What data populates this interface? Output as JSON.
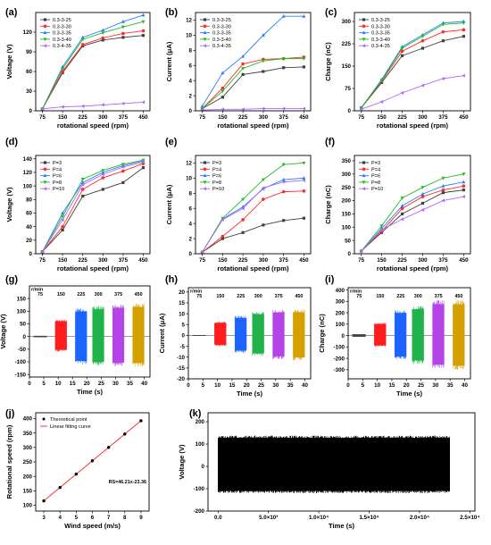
{
  "chart_data": [
    {
      "id": "a",
      "type": "line",
      "panel_label": "(a)",
      "xlabel": "rotational speed (rpm)",
      "ylabel": "Voltage (V)",
      "x": [
        75,
        150,
        225,
        300,
        375,
        450
      ],
      "xlim": [
        50,
        475
      ],
      "ylim": [
        0,
        150
      ],
      "yticks": [
        0,
        30,
        60,
        90,
        120
      ],
      "legend_position": "top-left",
      "series": [
        {
          "name": "0.3-3-25",
          "color": "#404040",
          "values": [
            3,
            58,
            99,
            108,
            112,
            115
          ]
        },
        {
          "name": "0.3-3-30",
          "color": "#ff2a2a",
          "values": [
            3,
            60,
            101,
            111,
            118,
            122
          ]
        },
        {
          "name": "0.3-3-35",
          "color": "#2a7fff",
          "values": [
            3,
            67,
            112,
            123,
            136,
            146
          ]
        },
        {
          "name": "0.3-3-40",
          "color": "#22bb22",
          "values": [
            3,
            64,
            109,
            119,
            128,
            136
          ]
        },
        {
          "name": "0.3-4-35",
          "color": "#b066ff",
          "values": [
            3,
            6,
            7,
            9,
            11,
            13
          ]
        }
      ]
    },
    {
      "id": "b",
      "type": "line",
      "panel_label": "(b)",
      "xlabel": "rotational speed (rpm)",
      "ylabel": "Current (μA)",
      "x": [
        75,
        150,
        225,
        300,
        375,
        450
      ],
      "xlim": [
        50,
        475
      ],
      "ylim": [
        0,
        13
      ],
      "yticks": [
        0,
        2,
        4,
        6,
        8,
        10,
        12
      ],
      "legend_position": "top-left",
      "series": [
        {
          "name": "0.3-3-25",
          "color": "#404040",
          "values": [
            0.3,
            1.8,
            4.8,
            5.2,
            5.7,
            5.8
          ]
        },
        {
          "name": "0.3-3-30",
          "color": "#ff2a2a",
          "values": [
            0.3,
            3.0,
            6.2,
            6.8,
            6.9,
            7.1
          ]
        },
        {
          "name": "0.3-3-35",
          "color": "#2a7fff",
          "values": [
            0.6,
            5.0,
            7.2,
            10.0,
            12.5,
            12.5
          ]
        },
        {
          "name": "0.3-3-40",
          "color": "#22bb22",
          "values": [
            0.3,
            2.6,
            5.6,
            6.6,
            6.9,
            6.9
          ]
        },
        {
          "name": "0.3-4-35",
          "color": "#b066ff",
          "values": [
            0.1,
            0.2,
            0.2,
            0.3,
            0.3,
            0.3
          ]
        }
      ]
    },
    {
      "id": "c",
      "type": "line",
      "panel_label": "(c)",
      "xlabel": "rotational speed (rpm)",
      "ylabel": "Charge (nC)",
      "x": [
        75,
        150,
        225,
        300,
        375,
        450
      ],
      "xlim": [
        50,
        475
      ],
      "ylim": [
        0,
        330
      ],
      "yticks": [
        0,
        75,
        150,
        225,
        300
      ],
      "legend_position": "top-left",
      "series": [
        {
          "name": "0.3-3-25",
          "color": "#404040",
          "values": [
            10,
            95,
            185,
            210,
            235,
            250
          ]
        },
        {
          "name": "0.3-3-30",
          "color": "#ff2a2a",
          "values": [
            10,
            100,
            200,
            235,
            265,
            272
          ]
        },
        {
          "name": "0.3-3-35",
          "color": "#2a7fff",
          "values": [
            10,
            105,
            215,
            255,
            295,
            300
          ]
        },
        {
          "name": "0.3-3-40",
          "color": "#22bb22",
          "values": [
            10,
            102,
            210,
            250,
            290,
            295
          ]
        },
        {
          "name": "0.3-4-35",
          "color": "#b066ff",
          "values": [
            5,
            30,
            60,
            85,
            108,
            118
          ]
        }
      ]
    },
    {
      "id": "d",
      "type": "line",
      "panel_label": "(d)",
      "xlabel": "rotational speed (rpm)",
      "ylabel": "Voltage (V)",
      "x": [
        75,
        150,
        225,
        300,
        375,
        450
      ],
      "xlim": [
        50,
        475
      ],
      "ylim": [
        0,
        145
      ],
      "yticks": [
        0,
        20,
        40,
        60,
        80,
        100,
        120,
        140
      ],
      "legend_position": "top-left",
      "series": [
        {
          "name": "P=3",
          "color": "#404040",
          "values": [
            3,
            35,
            85,
            95,
            105,
            127
          ]
        },
        {
          "name": "P=4",
          "color": "#ff2a2a",
          "values": [
            3,
            40,
            95,
            112,
            122,
            133
          ]
        },
        {
          "name": "P=6",
          "color": "#2a7fff",
          "values": [
            3,
            60,
            105,
            120,
            130,
            137
          ]
        },
        {
          "name": "P=8",
          "color": "#22bb22",
          "values": [
            3,
            55,
            110,
            123,
            132,
            138
          ]
        },
        {
          "name": "P=10",
          "color": "#b066ff",
          "values": [
            3,
            50,
            102,
            117,
            128,
            135
          ]
        }
      ]
    },
    {
      "id": "e",
      "type": "line",
      "panel_label": "(e)",
      "xlabel": "rotational speed (rpm)",
      "ylabel": "Current (μA)",
      "x": [
        75,
        150,
        225,
        300,
        375,
        450
      ],
      "xlim": [
        50,
        475
      ],
      "ylim": [
        0,
        13
      ],
      "yticks": [
        0,
        2,
        4,
        6,
        8,
        10,
        12
      ],
      "legend_position": "top-left",
      "series": [
        {
          "name": "P=3",
          "color": "#404040",
          "values": [
            0.2,
            2.0,
            2.8,
            3.8,
            4.4,
            4.7
          ]
        },
        {
          "name": "P=4",
          "color": "#ff2a2a",
          "values": [
            0.2,
            2.3,
            4.5,
            7.2,
            8.2,
            8.3
          ]
        },
        {
          "name": "P=6",
          "color": "#2a7fff",
          "values": [
            0.2,
            4.6,
            6.2,
            8.6,
            9.8,
            10.0
          ]
        },
        {
          "name": "P=8",
          "color": "#22bb22",
          "values": [
            0.2,
            4.7,
            7.2,
            9.8,
            11.8,
            12.0
          ]
        },
        {
          "name": "P=10",
          "color": "#b066ff",
          "values": [
            0.2,
            4.5,
            6.0,
            8.7,
            9.5,
            9.7
          ]
        }
      ]
    },
    {
      "id": "f",
      "type": "line",
      "panel_label": "(f)",
      "xlabel": "rotational speed (rpm)",
      "ylabel": "Charge (nC)",
      "x": [
        75,
        150,
        225,
        300,
        375,
        450
      ],
      "xlim": [
        50,
        475
      ],
      "ylim": [
        0,
        370
      ],
      "yticks": [
        0,
        50,
        100,
        150,
        200,
        250,
        300,
        350
      ],
      "legend_position": "top-left",
      "series": [
        {
          "name": "P=3",
          "color": "#404040",
          "values": [
            10,
            80,
            150,
            190,
            230,
            240
          ]
        },
        {
          "name": "P=4",
          "color": "#ff2a2a",
          "values": [
            10,
            85,
            170,
            215,
            240,
            255
          ]
        },
        {
          "name": "P=6",
          "color": "#2a7fff",
          "values": [
            10,
            95,
            180,
            225,
            255,
            270
          ]
        },
        {
          "name": "P=8",
          "color": "#22bb22",
          "values": [
            10,
            105,
            210,
            250,
            285,
            300
          ]
        },
        {
          "name": "P=10",
          "color": "#b066ff",
          "values": [
            10,
            90,
            130,
            165,
            200,
            215
          ]
        }
      ]
    },
    {
      "id": "g",
      "type": "area",
      "panel_label": "(g)",
      "xlabel": "Time (s)",
      "ylabel": "Voltage (V)",
      "xlim": [
        0,
        42
      ],
      "xticks": [
        0,
        5,
        10,
        15,
        20,
        25,
        30,
        35,
        40
      ],
      "ylim": [
        -160,
        200
      ],
      "yticks": [
        -150,
        -100,
        -50,
        0,
        50,
        100,
        150
      ],
      "unit_note": "r/min",
      "segments": [
        {
          "label": "75",
          "start": 1.5,
          "end": 6,
          "min": -3,
          "max": 3,
          "color": "#444444"
        },
        {
          "label": "150",
          "start": 9,
          "end": 13,
          "min": -60,
          "max": 68,
          "color": "#ff1e1e"
        },
        {
          "label": "225",
          "start": 16,
          "end": 20,
          "min": -110,
          "max": 112,
          "color": "#1e64ff"
        },
        {
          "label": "300",
          "start": 22,
          "end": 26,
          "min": -115,
          "max": 122,
          "color": "#22b24c"
        },
        {
          "label": "375",
          "start": 29,
          "end": 33,
          "min": -118,
          "max": 128,
          "color": "#b445e8"
        },
        {
          "label": "450",
          "start": 36,
          "end": 40,
          "min": -120,
          "max": 132,
          "color": "#d6a000"
        }
      ]
    },
    {
      "id": "h",
      "type": "area",
      "panel_label": "(h)",
      "xlabel": "Time (s)",
      "ylabel": "Current (μA)",
      "xlim": [
        0,
        42
      ],
      "xticks": [
        0,
        5,
        10,
        15,
        20,
        25,
        30,
        35,
        40
      ],
      "ylim": [
        -20,
        22
      ],
      "yticks": [
        -20,
        -15,
        -10,
        -5,
        0,
        5,
        10,
        15,
        20
      ],
      "unit_note": "r/min",
      "segments": [
        {
          "label": "75",
          "start": 1.5,
          "end": 6,
          "min": -0.2,
          "max": 0.2,
          "color": "#444444"
        },
        {
          "label": "150",
          "start": 9,
          "end": 13,
          "min": -5,
          "max": 6.5,
          "color": "#ff1e1e"
        },
        {
          "label": "225",
          "start": 16,
          "end": 20,
          "min": -8,
          "max": 9,
          "color": "#1e64ff"
        },
        {
          "label": "300",
          "start": 22,
          "end": 26,
          "min": -9.5,
          "max": 11,
          "color": "#22b24c"
        },
        {
          "label": "375",
          "start": 29,
          "end": 33,
          "min": -11,
          "max": 12,
          "color": "#b445e8"
        },
        {
          "label": "450",
          "start": 36,
          "end": 40,
          "min": -11.5,
          "max": 12,
          "color": "#d6a000"
        }
      ]
    },
    {
      "id": "i",
      "type": "area",
      "panel_label": "(i)",
      "xlabel": "Time (s)",
      "ylabel": "Charge (nC)",
      "xlim": [
        0,
        42
      ],
      "xticks": [
        0,
        5,
        10,
        15,
        20,
        25,
        30,
        35,
        40
      ],
      "ylim": [
        -380,
        420
      ],
      "yticks": [
        -300,
        -200,
        -100,
        0,
        100,
        200,
        300,
        400
      ],
      "unit_note": "r/min",
      "segments": [
        {
          "label": "75",
          "start": 1.5,
          "end": 6,
          "min": -12,
          "max": 12,
          "color": "#444444"
        },
        {
          "label": "150",
          "start": 9,
          "end": 13,
          "min": -100,
          "max": 115,
          "color": "#ff1e1e"
        },
        {
          "label": "225",
          "start": 16,
          "end": 20,
          "min": -210,
          "max": 225,
          "color": "#1e64ff"
        },
        {
          "label": "300",
          "start": 22,
          "end": 26,
          "min": -250,
          "max": 262,
          "color": "#22b24c"
        },
        {
          "label": "375",
          "start": 29,
          "end": 33,
          "min": -290,
          "max": 310,
          "color": "#b445e8"
        },
        {
          "label": "450",
          "start": 36,
          "end": 40,
          "min": -300,
          "max": 310,
          "color": "#d6a000"
        }
      ]
    },
    {
      "id": "j",
      "type": "scatter",
      "panel_label": "(j)",
      "xlabel": "Wind speed (m/s)",
      "ylabel": "Rotational speed (rpm)",
      "xlim": [
        2.5,
        9.5
      ],
      "xticks": [
        3,
        4,
        5,
        6,
        7,
        8,
        9
      ],
      "ylim": [
        80,
        420
      ],
      "yticks": [
        100,
        150,
        200,
        250,
        300,
        350,
        400
      ],
      "points_name": "Theoretical point",
      "fit_name": "Linear fitting curve",
      "fit_equation": "RS=46.21x-23.36",
      "x": [
        3,
        4,
        5,
        6,
        7,
        8,
        9
      ],
      "y": [
        115.3,
        161.5,
        207.7,
        253.9,
        300.1,
        346.3,
        392.5
      ],
      "point_color": "#000000",
      "fit_color": "#ff2020",
      "legend_position": "top-left"
    },
    {
      "id": "k",
      "type": "area",
      "panel_label": "(k)",
      "xlabel": "Time (s)",
      "ylabel": "Voltage (V)",
      "xlim": [
        -1000,
        25500
      ],
      "xticks": [
        0,
        5000,
        10000,
        15000,
        20000,
        25000
      ],
      "xtick_labels": [
        "0.0",
        "5.0×10³",
        "1.0×10⁴",
        "1.5×10⁴",
        "2.0×10⁴",
        "2.5×10⁴"
      ],
      "ylim": [
        -200,
        240
      ],
      "yticks": [
        -200,
        -100,
        0,
        100,
        200
      ],
      "signal": {
        "start": 0,
        "end": 23000,
        "min": -120,
        "max": 138,
        "color": "#000000"
      }
    }
  ]
}
